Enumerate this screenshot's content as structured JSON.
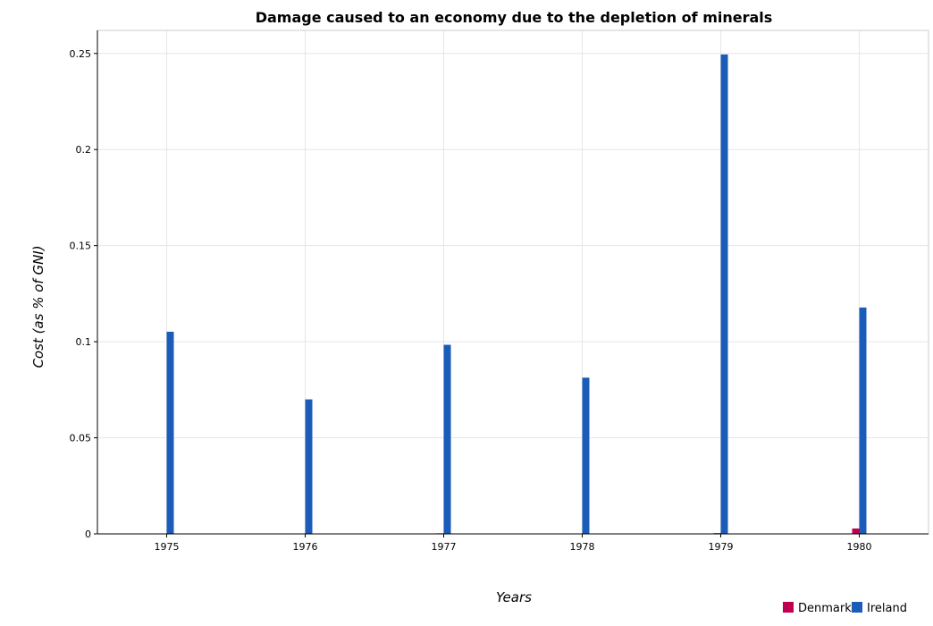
{
  "chart_data": {
    "type": "bar",
    "title": "Damage caused to an economy due to the depletion of minerals",
    "xlabel": "Years",
    "ylabel": "Cost (as % of GNI)",
    "categories": [
      "1975",
      "1976",
      "1977",
      "1978",
      "1979",
      "1980"
    ],
    "ylim": [
      0,
      0.262
    ],
    "yticks": [
      0,
      0.05,
      0.1,
      0.15,
      0.2,
      0.25
    ],
    "ytick_labels": [
      "0",
      "0.05",
      "0.1",
      "0.15",
      "0.2",
      "0.25"
    ],
    "grid": true,
    "legend_position": "bottom-right",
    "series": [
      {
        "name": "Denmark",
        "color": "#c0004e",
        "values": [
          0.0001,
          0.0002,
          0.0003,
          0.0002,
          0.0004,
          0.0028
        ]
      },
      {
        "name": "Ireland",
        "color": "#1a5cb8",
        "values": [
          0.1052,
          0.07,
          0.0984,
          0.0813,
          0.2495,
          0.1178
        ]
      }
    ]
  }
}
